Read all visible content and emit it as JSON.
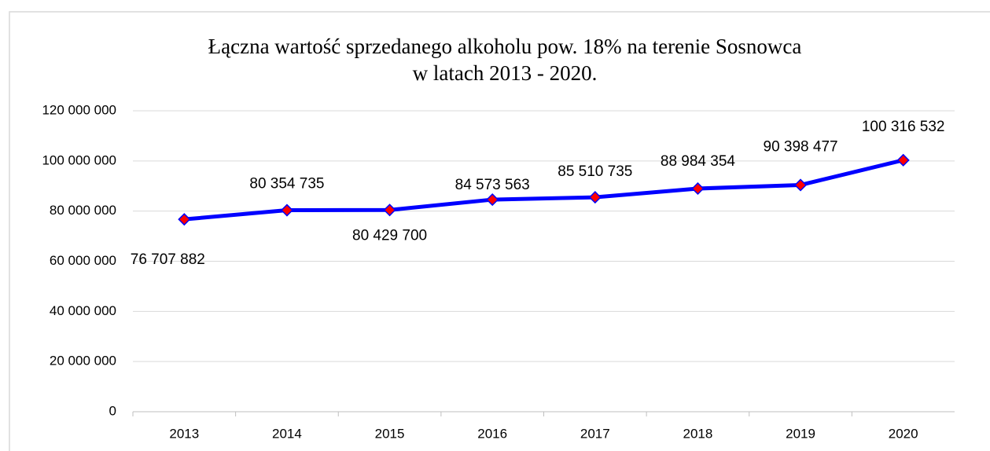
{
  "chart_data": {
    "type": "line",
    "title": [
      "Łączna wartość sprzedanego alkoholu pow. 18% na terenie Sosnowca",
      "w latach 2013 - 2020."
    ],
    "categories": [
      "2013",
      "2014",
      "2015",
      "2016",
      "2017",
      "2018",
      "2019",
      "2020"
    ],
    "series": [
      {
        "name": "Łączna wartość",
        "color": "#0000ff",
        "marker_color": "#ff0000",
        "values": [
          76707882,
          80354735,
          80429700,
          84573563,
          85510735,
          88984354,
          90398477,
          100316532
        ],
        "value_labels": [
          "76 707 882",
          "80 354 735",
          "80 429 700",
          "84 573 563",
          "85 510 735",
          "88 984 354",
          "90 398 477",
          "100 316 532"
        ]
      }
    ],
    "ylim": [
      0,
      120000000
    ],
    "yticks": [
      0,
      {
        "value": 20000000,
        "label": "20 000 000"
      },
      {
        "value": 40000000,
        "label": "40 000 000"
      },
      {
        "value": 60000000,
        "label": "60 000 000"
      },
      {
        "value": 80000000,
        "label": "80 000 000"
      },
      {
        "value": 100000000,
        "label": "100 000 000"
      },
      {
        "value": 120000000,
        "label": "120 000 000"
      }
    ],
    "grid": true
  }
}
